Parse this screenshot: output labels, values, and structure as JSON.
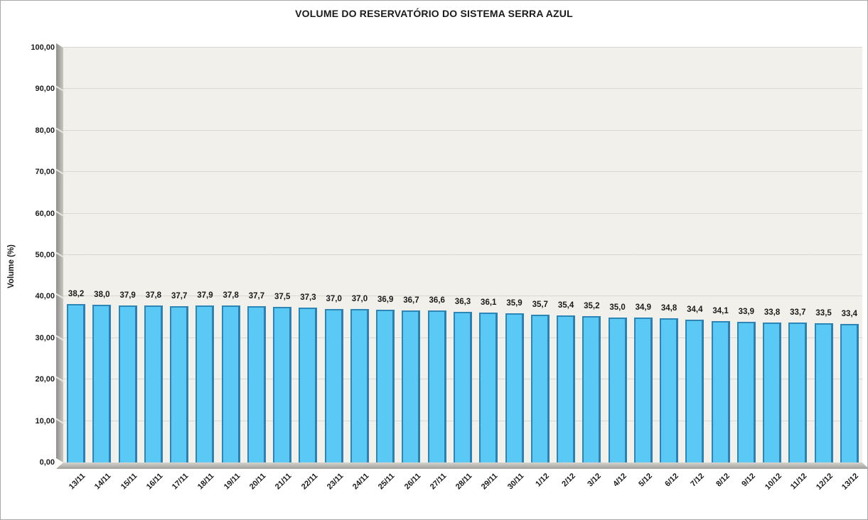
{
  "window": {
    "background": "#FFFFFF",
    "border_color": "#A9A9A9"
  },
  "chart_data": {
    "type": "bar",
    "title": "VOLUME DO RESERVATÓRIO DO SISTEMA SERRA AZUL",
    "ylabel": "Volume (%)",
    "xlabel": "",
    "categories": [
      "13/11",
      "14/11",
      "15/11",
      "16/11",
      "17/11",
      "18/11",
      "19/11",
      "20/11",
      "21/11",
      "22/11",
      "23/11",
      "24/11",
      "25/11",
      "26/11",
      "27/11",
      "28/11",
      "29/11",
      "30/11",
      "1/12",
      "2/12",
      "3/12",
      "4/12",
      "5/12",
      "6/12",
      "7/12",
      "8/12",
      "9/12",
      "10/12",
      "11/12",
      "12/12",
      "13/12"
    ],
    "values": [
      38.2,
      38.0,
      37.9,
      37.8,
      37.7,
      37.9,
      37.8,
      37.7,
      37.5,
      37.3,
      37.0,
      37.0,
      36.9,
      36.7,
      36.6,
      36.3,
      36.1,
      35.9,
      35.7,
      35.4,
      35.2,
      35.0,
      34.9,
      34.8,
      34.4,
      34.1,
      33.9,
      33.8,
      33.7,
      33.5,
      33.4
    ],
    "bar_labels": [
      "38,2",
      "38,0",
      "37,9",
      "37,8",
      "37,7",
      "37,9",
      "37,8",
      "37,7",
      "37,5",
      "37,3",
      "37,0",
      "37,0",
      "36,9",
      "36,7",
      "36,6",
      "36,3",
      "36,1",
      "35,9",
      "35,7",
      "35,4",
      "35,2",
      "35,0",
      "34,9",
      "34,8",
      "34,4",
      "34,1",
      "33,9",
      "33,8",
      "33,7",
      "33,5",
      "33,4"
    ],
    "ylim": [
      0,
      100
    ],
    "ytick_values": [
      0,
      10,
      20,
      30,
      40,
      50,
      60,
      70,
      80,
      90,
      100
    ],
    "ytick_labels": [
      "0,00",
      "10,00",
      "20,00",
      "30,00",
      "40,00",
      "50,00",
      "60,00",
      "70,00",
      "80,00",
      "90,00",
      "100,00"
    ],
    "grid": true,
    "legend": "none",
    "decimal_separator": ",",
    "colors": {
      "bar_fill": "#5BC9F6",
      "bar_edge": "#2C80B2",
      "plot_bg": "#F2F0EA",
      "wall_gray": "#8F8D87",
      "text": "#1A1A1A"
    }
  }
}
